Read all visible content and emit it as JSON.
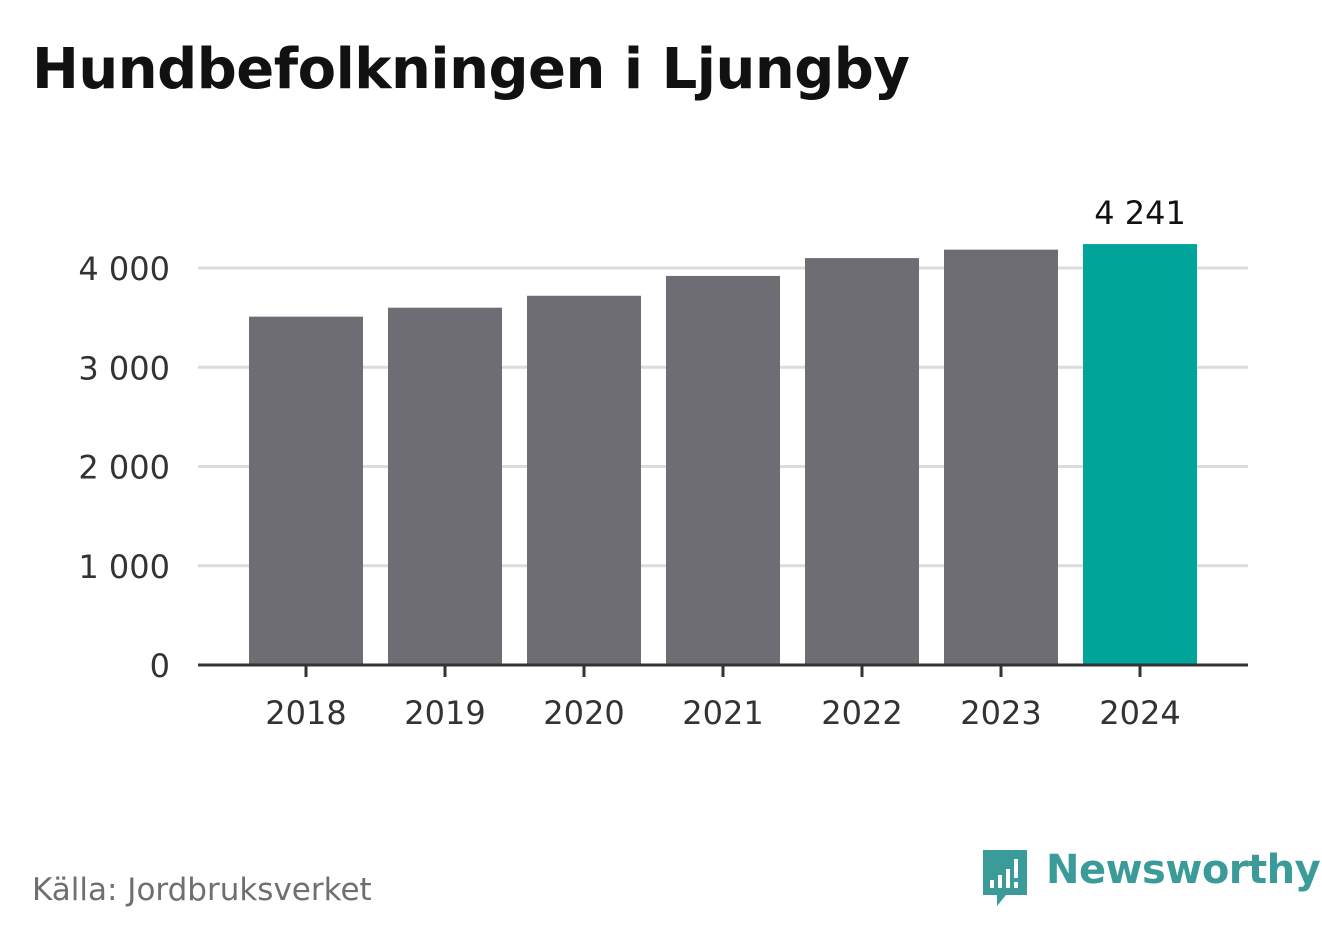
{
  "title": "Hundbefolkningen i Ljungby",
  "source": "Källa: Jordbruksverket",
  "brand": {
    "name": "Newsworthy",
    "icon": "newsworthy-logo-icon",
    "color": "#3a9b98"
  },
  "chart_data": {
    "type": "bar",
    "title": "Hundbefolkningen i Ljungby",
    "xlabel": "",
    "ylabel": "",
    "categories": [
      "2018",
      "2019",
      "2020",
      "2021",
      "2022",
      "2023",
      "2024"
    ],
    "values": [
      3510,
      3600,
      3720,
      3920,
      4100,
      4185,
      4241
    ],
    "data_labels": [
      "",
      "",
      "",
      "",
      "",
      "",
      "4 241"
    ],
    "ylim": [
      0,
      4400
    ],
    "yticks": [
      0,
      1000,
      2000,
      3000,
      4000
    ],
    "ytick_labels": [
      "0",
      "1 000",
      "2 000",
      "3 000",
      "4 000"
    ],
    "grid": true,
    "colors": {
      "bar": "#6e6d74",
      "highlight": "#00a499",
      "grid": "#dcdcdc",
      "axis": "#333333",
      "tick_text": "#333333",
      "label_text": "#111111"
    },
    "highlight_index": 6
  }
}
